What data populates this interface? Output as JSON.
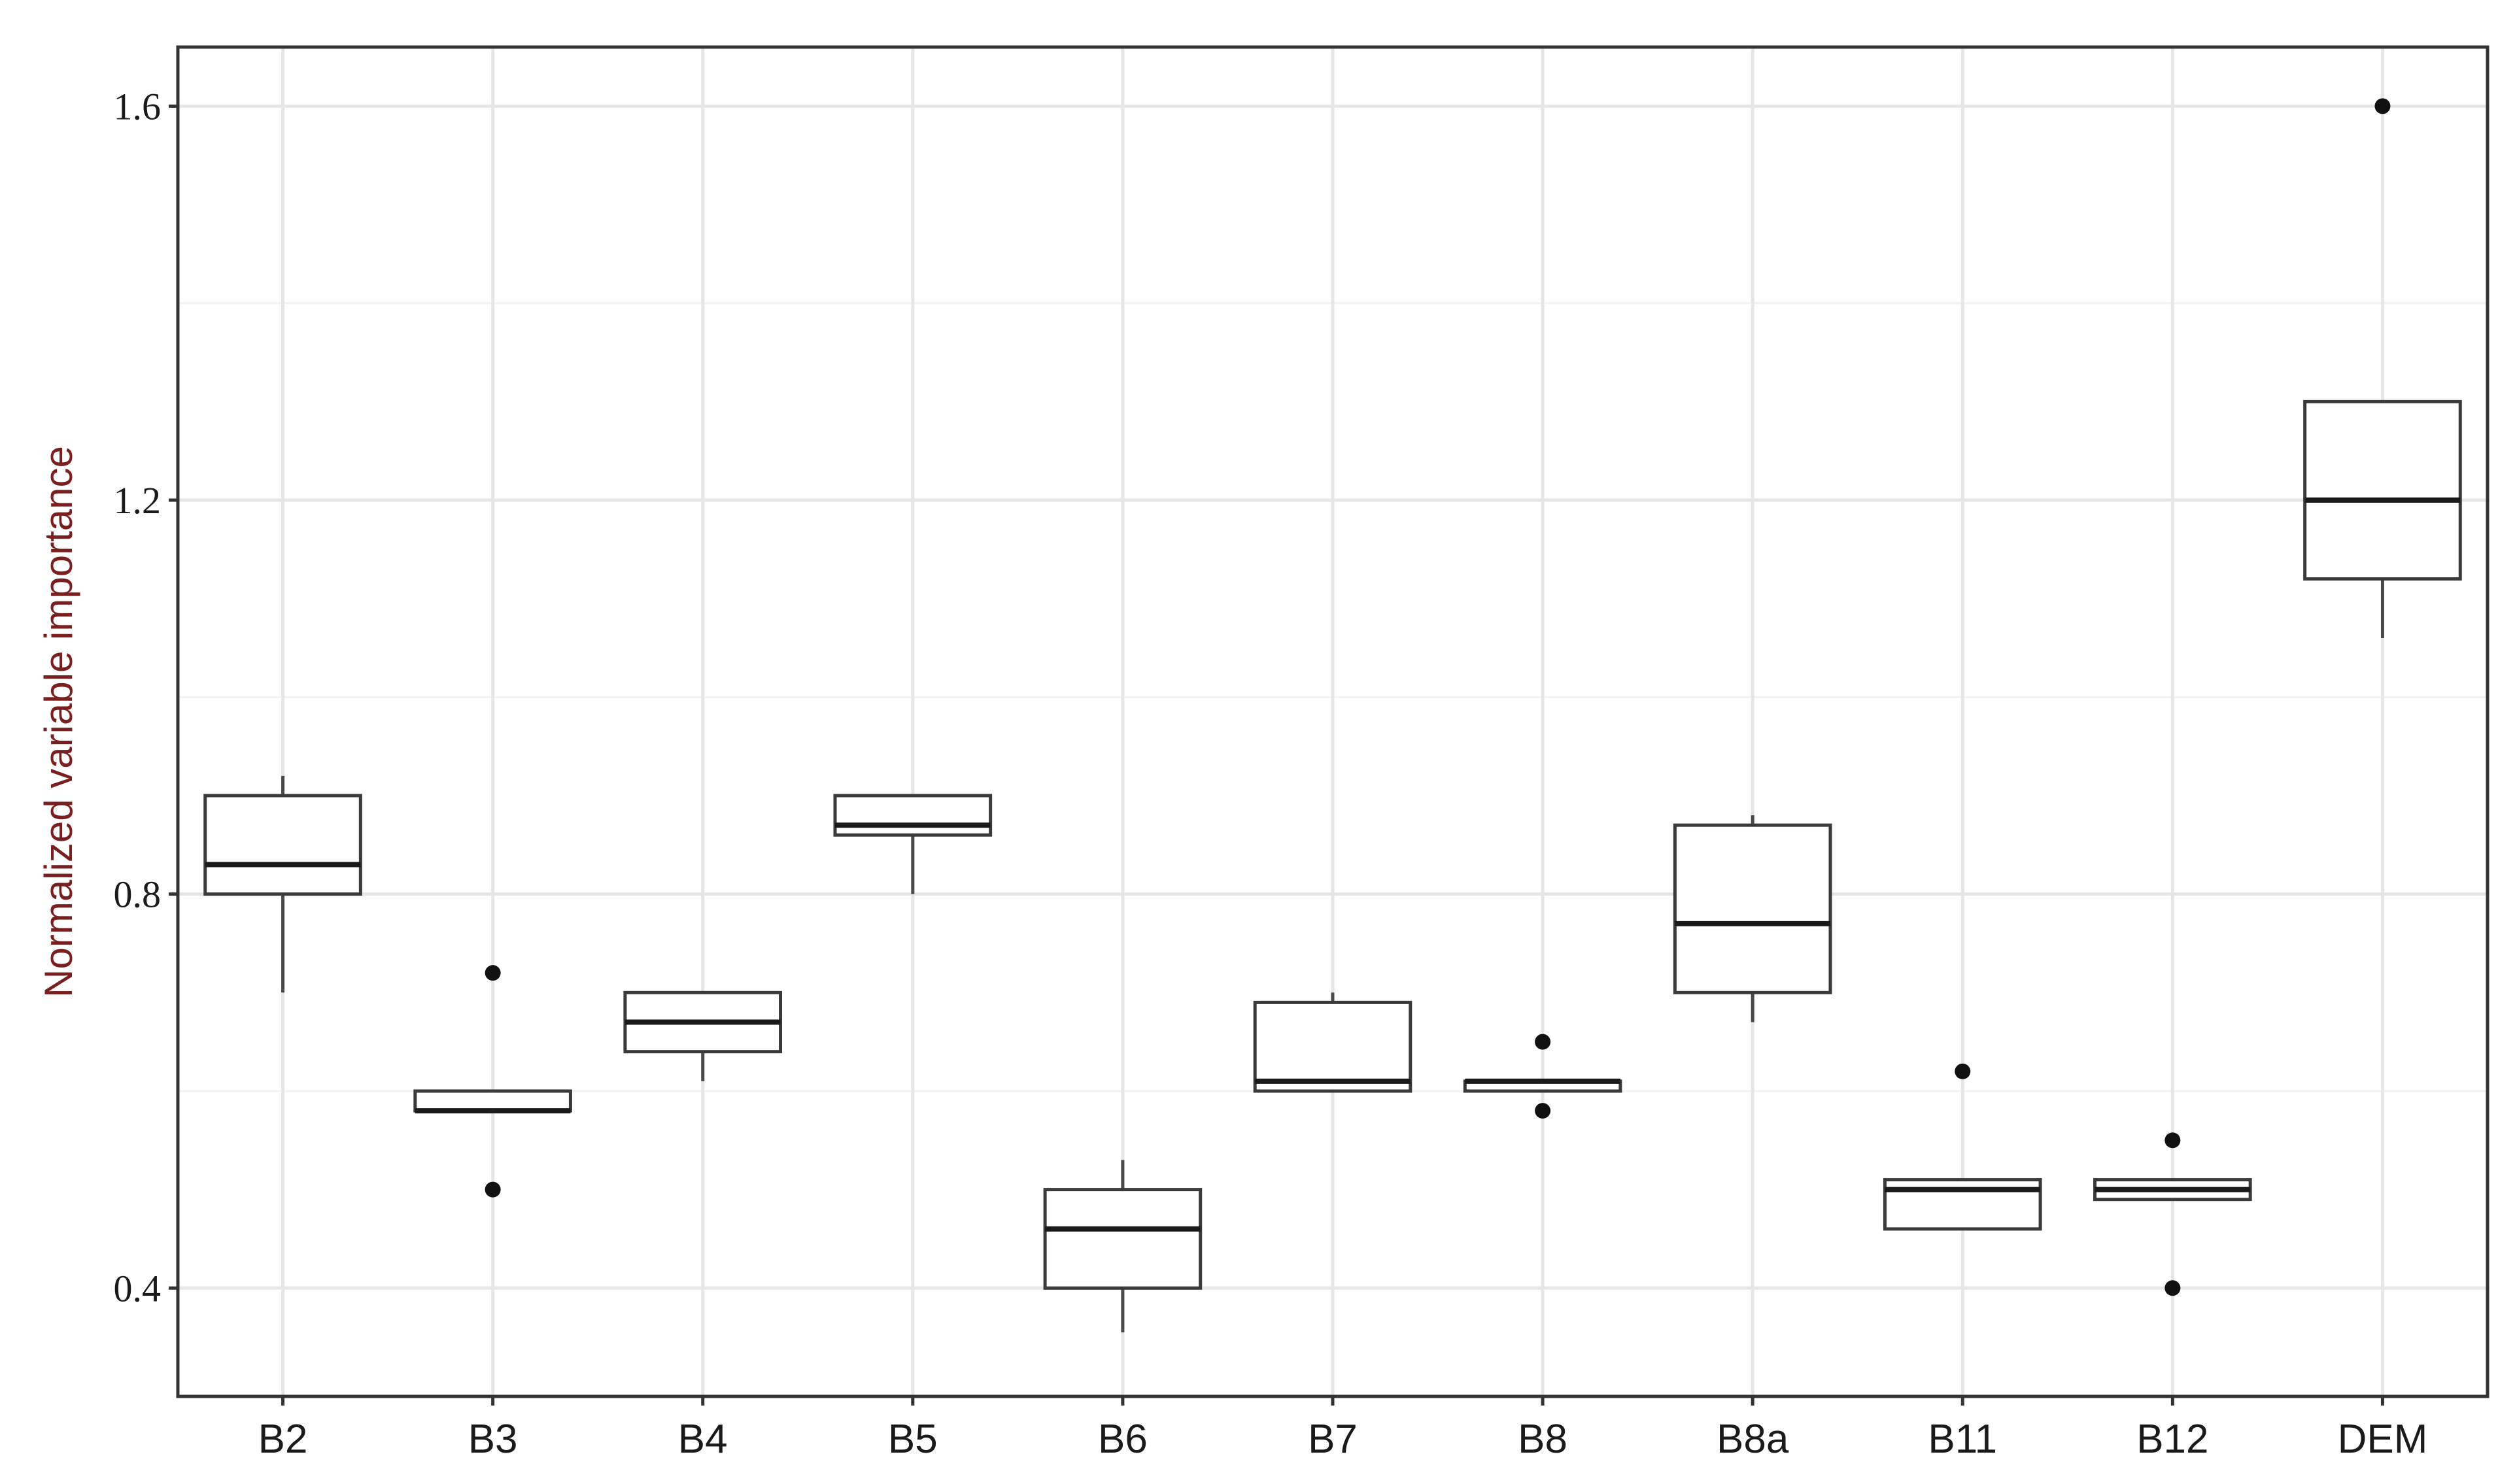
{
  "chart_data": {
    "type": "box",
    "title": "",
    "xlabel": "",
    "ylabel": "Normalized variable importance",
    "ylim": [
      0.29,
      1.66
    ],
    "y_ticks": [
      0.4,
      0.8,
      1.2,
      1.6
    ],
    "y_tick_labels": [
      "0.4",
      "0.8",
      "1.2",
      "1.6"
    ],
    "grid": true,
    "legend": "none",
    "categories": [
      "B2",
      "B3",
      "B4",
      "B5",
      "B6",
      "B7",
      "B8",
      "B8a",
      "B11",
      "B12",
      "DEM"
    ],
    "boxes": [
      {
        "label": "B2",
        "whisker_low": 0.7,
        "q1": 0.8,
        "median": 0.83,
        "q3": 0.9,
        "whisker_high": 0.92,
        "outliers": []
      },
      {
        "label": "B3",
        "whisker_low": 0.58,
        "q1": 0.58,
        "median": 0.58,
        "q3": 0.6,
        "whisker_high": 0.6,
        "outliers": [
          0.72,
          0.5
        ]
      },
      {
        "label": "B4",
        "whisker_low": 0.61,
        "q1": 0.64,
        "median": 0.67,
        "q3": 0.7,
        "whisker_high": 0.7,
        "outliers": []
      },
      {
        "label": "B5",
        "whisker_low": 0.8,
        "q1": 0.86,
        "median": 0.87,
        "q3": 0.9,
        "whisker_high": 0.9,
        "outliers": []
      },
      {
        "label": "B6",
        "whisker_low": 0.355,
        "q1": 0.4,
        "median": 0.46,
        "q3": 0.5,
        "whisker_high": 0.53,
        "outliers": []
      },
      {
        "label": "B7",
        "whisker_low": 0.6,
        "q1": 0.6,
        "median": 0.61,
        "q3": 0.69,
        "whisker_high": 0.7,
        "outliers": []
      },
      {
        "label": "B8",
        "whisker_low": 0.6,
        "q1": 0.6,
        "median": 0.61,
        "q3": 0.61,
        "whisker_high": 0.61,
        "outliers": [
          0.65,
          0.58
        ]
      },
      {
        "label": "B8a",
        "whisker_low": 0.67,
        "q1": 0.7,
        "median": 0.77,
        "q3": 0.87,
        "whisker_high": 0.88,
        "outliers": []
      },
      {
        "label": "B11",
        "whisker_low": 0.46,
        "q1": 0.46,
        "median": 0.5,
        "q3": 0.51,
        "whisker_high": 0.51,
        "outliers": [
          0.62
        ]
      },
      {
        "label": "B12",
        "whisker_low": 0.49,
        "q1": 0.49,
        "median": 0.5,
        "q3": 0.51,
        "whisker_high": 0.51,
        "outliers": [
          0.55,
          0.4
        ]
      },
      {
        "label": "DEM",
        "whisker_low": 1.06,
        "q1": 1.12,
        "median": 1.2,
        "q3": 1.3,
        "whisker_high": 1.3,
        "outliers": [
          1.6
        ]
      }
    ]
  },
  "colors": {
    "box_stroke": "#3a3a3a",
    "median": "#1a1a1a",
    "whisker": "#4a4a4a",
    "outlier": "#111111",
    "grid_major": "#e6e6e6",
    "grid_minor": "#f2f2f2",
    "panel_border": "#333333",
    "ylabel_color": "#7a1f1f"
  }
}
